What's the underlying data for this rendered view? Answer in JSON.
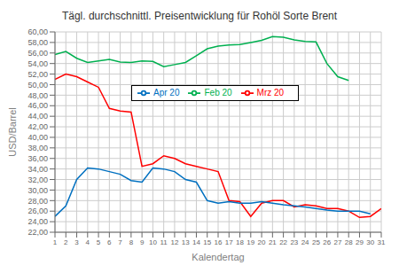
{
  "chart_data": {
    "type": "line",
    "title": "Tägl. durchschnittl. Preisentwicklung für Rohöl Sorte Brent",
    "xlabel": "Kalendertag",
    "ylabel": "USD/Barrel",
    "x": [
      1,
      2,
      3,
      4,
      5,
      6,
      7,
      8,
      9,
      10,
      11,
      12,
      13,
      14,
      15,
      16,
      17,
      18,
      19,
      20,
      21,
      22,
      23,
      24,
      25,
      26,
      27,
      28,
      29,
      30,
      31
    ],
    "xlim": [
      1,
      31
    ],
    "xticks": [
      1,
      2,
      3,
      4,
      5,
      6,
      7,
      8,
      9,
      10,
      11,
      12,
      13,
      14,
      15,
      16,
      17,
      18,
      19,
      20,
      21,
      22,
      23,
      24,
      25,
      26,
      27,
      28,
      29,
      30,
      31
    ],
    "ylim": [
      22,
      60
    ],
    "yticks": [
      {
        "value": 22,
        "label": "22,00"
      },
      {
        "value": 24,
        "label": "24,00"
      },
      {
        "value": 26,
        "label": "26,00"
      },
      {
        "value": 28,
        "label": "28,00"
      },
      {
        "value": 30,
        "label": "30,00"
      },
      {
        "value": 32,
        "label": "32,00"
      },
      {
        "value": 34,
        "label": "34,00"
      },
      {
        "value": 36,
        "label": "36,00"
      },
      {
        "value": 38,
        "label": "38,00"
      },
      {
        "value": 40,
        "label": "40,00"
      },
      {
        "value": 42,
        "label": "42,00"
      },
      {
        "value": 44,
        "label": "44,00"
      },
      {
        "value": 46,
        "label": "46,00"
      },
      {
        "value": 48,
        "label": "48,00"
      },
      {
        "value": 50,
        "label": "50,00"
      },
      {
        "value": 52,
        "label": "52,00"
      },
      {
        "value": 54,
        "label": "54,00"
      },
      {
        "value": 56,
        "label": "56,00"
      },
      {
        "value": 58,
        "label": "58,00"
      },
      {
        "value": 60,
        "label": "60,00"
      }
    ],
    "grid": true,
    "legend": "upper center",
    "series": [
      {
        "name": "Feb 20",
        "color": "#00b050",
        "values": [
          55.7,
          56.3,
          55.0,
          54.2,
          54.5,
          54.8,
          54.3,
          54.2,
          54.5,
          54.4,
          53.4,
          53.8,
          54.2,
          55.5,
          56.8,
          57.3,
          57.5,
          57.6,
          58.0,
          58.4,
          59.1,
          59.0,
          58.5,
          58.2,
          58.1,
          54.0,
          51.5,
          50.8,
          null,
          null,
          null
        ]
      },
      {
        "name": "Mrz 20",
        "color": "#ff0000",
        "values": [
          51.0,
          52.0,
          51.5,
          50.5,
          49.5,
          45.5,
          45.0,
          44.8,
          34.5,
          35.0,
          36.5,
          36.0,
          35.0,
          34.5,
          34.0,
          33.5,
          28.0,
          27.8,
          25.0,
          27.5,
          28.0,
          28.0,
          26.8,
          27.2,
          27.0,
          26.5,
          26.5,
          26.0,
          24.8,
          25.0,
          26.5
        ]
      },
      {
        "name": "Apr 20",
        "color": "#0070c0",
        "values": [
          25.0,
          27.0,
          32.0,
          34.2,
          34.0,
          33.5,
          33.0,
          31.8,
          31.5,
          34.2,
          34.0,
          33.5,
          32.0,
          31.5,
          28.0,
          27.5,
          27.8,
          27.5,
          27.5,
          27.8,
          27.5,
          27.2,
          27.0,
          26.8,
          26.5,
          26.2,
          26.0,
          26.0,
          26.0,
          25.5,
          null
        ]
      }
    ]
  }
}
